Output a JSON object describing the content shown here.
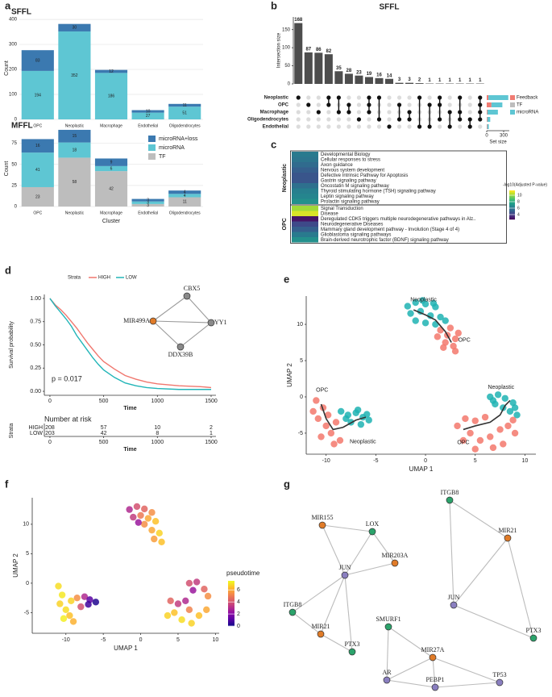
{
  "panel_labels": [
    "a",
    "b",
    "c",
    "d",
    "e",
    "f",
    "g"
  ],
  "chart_data": [
    {
      "type": "bar",
      "stacked": true,
      "title": "SFFL",
      "legend": false,
      "grid": true,
      "categories": [
        "OPC",
        "Neoplastic",
        "Macrophage",
        "Endothelial",
        "Oligodendrocytes"
      ],
      "series": [
        {
          "name": "microRNA",
          "color": "#5ec6d3",
          "values": [
            194,
            352,
            186,
            27,
            51
          ]
        },
        {
          "name": "microRNA+loss",
          "color": "#3b79b0",
          "values": [
            83,
            30,
            12,
            10,
            11
          ]
        }
      ],
      "ylim": [
        0,
        410
      ],
      "yticks": [
        0,
        100,
        200,
        300,
        400
      ],
      "ylabel": "Count"
    },
    {
      "type": "bar",
      "stacked": true,
      "title": "MFFL",
      "legend": "top-right",
      "grid": true,
      "categories": [
        "OPC",
        "Neoplastic",
        "Macrophage",
        "Endothelial",
        "Oligodendrocytes"
      ],
      "series": [
        {
          "name": "TF",
          "color": "#bdbdbd",
          "values": [
            23,
            58,
            42,
            3,
            11
          ]
        },
        {
          "name": "microRNA",
          "color": "#5ec6d3",
          "values": [
            41,
            18,
            6,
            3,
            4
          ]
        },
        {
          "name": "microRNA+loss",
          "color": "#3b79b0",
          "values": [
            16,
            15,
            9,
            3,
            4
          ]
        }
      ],
      "ylim": [
        0,
        90
      ],
      "yticks": [
        0,
        25,
        50,
        75
      ],
      "xlabel": "Cluster",
      "ylabel": "Count"
    },
    {
      "type": "upset",
      "title": "SFFL",
      "color": "#4d4d4d",
      "values": [
        168,
        87,
        86,
        82,
        35,
        28,
        23,
        19,
        16,
        14,
        3,
        3,
        2,
        1,
        1,
        1,
        1,
        1,
        1
      ],
      "sets": [
        "Neoplastic",
        "OPC",
        "Macrophage",
        "Oligodendrocytes",
        "Endothelial"
      ],
      "members": [
        [
          0
        ],
        [
          1
        ],
        [
          2
        ],
        [
          0,
          1
        ],
        [
          0,
          2
        ],
        [
          1,
          2
        ],
        [
          3
        ],
        [
          0,
          1,
          2
        ],
        [
          0,
          3
        ],
        [
          4
        ],
        [
          1,
          3
        ],
        [
          2,
          3
        ],
        [
          0,
          4
        ],
        [
          1,
          4
        ],
        [
          0,
          1,
          3
        ],
        [
          2,
          4
        ],
        [
          0,
          2,
          3
        ],
        [
          3,
          4
        ],
        [
          0,
          1,
          2,
          3
        ]
      ],
      "ylim": [
        0,
        185
      ],
      "yticks": [
        0,
        50,
        100,
        150
      ],
      "ylabel": "Intersection size",
      "set_size": {
        "label": "Set size",
        "xlim": [
          0,
          400
        ],
        "xticks": [
          0,
          300
        ],
        "series": [
          {
            "name": "Feedback",
            "color": "#f07b72",
            "values": [
              30,
              83,
              12,
              11,
              10
            ]
          },
          {
            "name": "TF",
            "color": "#bdbdbd",
            "values": [
              0,
              0,
              0,
              0,
              0
            ]
          },
          {
            "name": "microRNA",
            "color": "#5ec6d3",
            "values": [
              352,
              194,
              186,
              51,
              27
            ]
          }
        ]
      }
    },
    {
      "type": "heatmap",
      "colormap": "viridis",
      "groups": [
        {
          "name": "Neoplastic",
          "rows": [
            "Developmental Biology",
            "Cellular responses to stress",
            "Axon guidance",
            "Nervous system development",
            "Defective Intrinsic Pathway for Apoptosis",
            "Gastrin signaling pathway",
            "Oncostatin M signaling pathway",
            "Thyroid stimulating hormone (TSH) signaling pathway",
            "Leptin signaling pathway",
            "Prolactin signaling pathway"
          ],
          "values": [
            6.2,
            6,
            5.6,
            5.2,
            4.9,
            4.9,
            5.8,
            6.4,
            6.6,
            7
          ]
        },
        {
          "name": "OPC",
          "rows": [
            "Signal Transduction",
            "Disease",
            "Deregulated CDK5 triggers multiple neurodegenerative pathways in Alz..",
            "Neurodegenerative Diseases",
            "Mammary gland development pathway - Involution (Stage 4 of 4)",
            "Glioblastoma signaling pathways",
            "Brain-derived neurotrophic factor (BDNF) signaling pathway"
          ],
          "values": [
            10.2,
            11,
            3,
            4.5,
            5.2,
            6.2,
            7
          ]
        }
      ],
      "colorbar": {
        "label": "-log10(Adjusted P-value)",
        "lim": [
          2.5,
          11.5
        ],
        "ticks": [
          4,
          6,
          8,
          10
        ]
      }
    },
    {
      "type": "line",
      "legend_title": "Strata",
      "legend": "top",
      "series": [
        {
          "name": "HIGH",
          "color": "#f0776e",
          "x": [
            0,
            50,
            100,
            150,
            200,
            250,
            300,
            350,
            400,
            450,
            500,
            600,
            700,
            800,
            900,
            1000,
            1200,
            1400,
            1500
          ],
          "values": [
            1,
            0.93,
            0.88,
            0.82,
            0.75,
            0.68,
            0.6,
            0.52,
            0.45,
            0.38,
            0.32,
            0.24,
            0.17,
            0.13,
            0.1,
            0.08,
            0.06,
            0.05,
            0.04
          ]
        },
        {
          "name": "LOW",
          "color": "#22b5b8",
          "x": [
            0,
            50,
            100,
            150,
            200,
            250,
            300,
            350,
            400,
            450,
            500,
            600,
            700,
            800,
            900,
            1000,
            1200,
            1500
          ],
          "values": [
            1,
            0.92,
            0.85,
            0.78,
            0.7,
            0.6,
            0.52,
            0.44,
            0.36,
            0.29,
            0.23,
            0.15,
            0.09,
            0.06,
            0.04,
            0.03,
            0.02,
            0.02
          ]
        }
      ],
      "xlim": [
        -52,
        1545
      ],
      "xticks": [
        0,
        500,
        1000,
        1500
      ],
      "xlabel": "Time",
      "ylim": [
        -0.043,
        1.043
      ],
      "yticks": [
        {
          "value": 0,
          "label": "0.00"
        },
        0.25,
        {
          "value": 0.5,
          "label": "0.50"
        },
        0.75,
        {
          "value": 1,
          "label": "1.00"
        }
      ],
      "ylabel": "Survival probability",
      "annotation": "p = 0.017",
      "risk_table": {
        "title": "Number at risk",
        "ylabel": "Strata",
        "xlabel": "Time",
        "xticks": [
          0,
          500,
          1000,
          1500
        ],
        "rows": [
          {
            "name": "HIGH",
            "values": [
              208,
              57,
              10,
              2
            ]
          },
          {
            "name": "LOW",
            "values": [
              203,
              42,
              8,
              1
            ]
          }
        ]
      }
    },
    {
      "type": "scatter",
      "xlabel": "UMAP 1",
      "ylabel": "UMAP 2",
      "xlim": [
        -12,
        11.1
      ],
      "xticks": [
        -10,
        -5,
        0,
        5,
        10
      ],
      "ylim": [
        -7.9,
        13.9
      ],
      "yticks": [
        -5,
        0,
        5,
        10
      ],
      "series": [
        {
          "name": "Neoplastic",
          "color": "#1fb3b3",
          "x": [
            -1.8,
            -1,
            0,
            1,
            -1.5,
            -0.5,
            0.5,
            1.5,
            -1,
            0,
            1,
            2,
            -0.3,
            0.8,
            -8.5,
            -7.8,
            -7,
            -6.3,
            -5.7,
            -7.5,
            -6.5,
            -8,
            -6.8,
            -5.9,
            6.5,
            7.3,
            8,
            8.8,
            7,
            7.8,
            8.5,
            9.2,
            6.8,
            9
          ],
          "values": [
            12.5,
            13,
            12.8,
            12.4,
            11.5,
            11.8,
            11.2,
            11,
            10.5,
            10.2,
            10,
            10.5,
            13.3,
            12.9,
            -2,
            -2.5,
            -2.2,
            -2.8,
            -3.2,
            -3.5,
            -3.8,
            -3,
            -1.8,
            -2.4,
            0,
            0.3,
            -0.2,
            -0.8,
            -1,
            -1.5,
            -2,
            -2.5,
            -0.5,
            -1.5
          ]
        },
        {
          "name": "OPC",
          "color": "#f3786c",
          "x": [
            1.5,
            2.2,
            3,
            2,
            2.8,
            3.3,
            1.2,
            2.5,
            3,
            1.8,
            -11,
            -10.3,
            -10.8,
            -10,
            -9.5,
            -10.5,
            -9.2,
            -11.3,
            -9.8,
            -9,
            -8.6,
            3.2,
            4,
            5,
            6,
            4.5,
            5.5,
            6.5,
            7.5,
            8.3,
            9,
            6.8,
            5,
            3.8,
            7.8,
            8.8
          ],
          "values": [
            9.2,
            8.5,
            8,
            7.5,
            7,
            8.8,
            8.3,
            9.5,
            6.3,
            6.8,
            -0.5,
            -1.5,
            -3,
            -4,
            -5,
            -5.5,
            -6.5,
            -2,
            -2.5,
            -3.5,
            -6,
            -4,
            -3,
            -3.3,
            -2.8,
            -5,
            -6,
            -5.5,
            -4.5,
            -4,
            -5,
            -7,
            -7.2,
            -6,
            -6.5,
            -3.2
          ]
        }
      ],
      "trajectory_color": "#333333",
      "trajectories": [
        {
          "x": [
            -1.2,
            0,
            1,
            2,
            2.6
          ],
          "values": [
            12,
            11.3,
            10.6,
            9,
            7.5
          ]
        },
        {
          "x": [
            -10.5,
            -10,
            -9.3,
            -8.3,
            -7,
            -6
          ],
          "values": [
            -1,
            -3,
            -4.5,
            -4.2,
            -3.2,
            -2.8
          ]
        },
        {
          "x": [
            3.8,
            5,
            6.5,
            7.5,
            8,
            8.5
          ],
          "values": [
            -4.5,
            -4,
            -3.5,
            -2.5,
            -1.2,
            -0.5
          ]
        }
      ],
      "annotations": [
        {
          "text": "Neoplastic",
          "x": -0.2,
          "y": 13.4
        },
        {
          "text": "OPC",
          "x": 3.9,
          "y": 7.8
        },
        {
          "text": "OPC",
          "x": -10.4,
          "y": 0.9
        },
        {
          "text": "Neoplastic",
          "x": -6.3,
          "y": -6.2
        },
        {
          "text": "Neoplastic",
          "x": 7.6,
          "y": 1.3
        },
        {
          "text": "OPC",
          "x": 3.8,
          "y": -6.3
        }
      ]
    },
    {
      "type": "scatter",
      "colormap": "plasma",
      "xlabel": "UMAP 1",
      "ylabel": "UMAP 2",
      "xlim": [
        -14.5,
        10.5
      ],
      "xticks": [
        -10,
        -5,
        0,
        5,
        10
      ],
      "ylim": [
        -8.5,
        14.5
      ],
      "yticks": [
        -5,
        0,
        5,
        10
      ],
      "series": [
        {
          "x": [
            -1.5,
            -0.5,
            0.5,
            1.5,
            -1,
            0,
            1,
            2,
            0.5,
            1.5,
            2.5,
            2.8,
            1.8,
            -0.3,
            -11,
            -10.5,
            -10.8,
            -10,
            -9.5,
            -10.3,
            -9,
            -9.3,
            -8.5,
            -7.5,
            -6.8,
            -6,
            -7,
            -8,
            6.5,
            7.5,
            8.5,
            7,
            9,
            4,
            5,
            6,
            4.5,
            5.5,
            6.8,
            7.8,
            8.8,
            3.6,
            6.5
          ],
          "values": [
            12.5,
            13,
            12.6,
            12,
            11.2,
            11.5,
            11,
            10.5,
            10,
            9,
            8.5,
            7,
            7.5,
            10.3,
            -0.5,
            -2,
            -3.5,
            -4.5,
            -5.5,
            -6,
            -6.5,
            -3,
            -2.5,
            -2.3,
            -2.8,
            -3.2,
            -3.6,
            -4,
            0,
            0.2,
            -1,
            -1.2,
            -2.2,
            -3,
            -3.5,
            -3,
            -5,
            -6.2,
            -6.8,
            -5.5,
            -4.5,
            -5.5,
            -4.5
          ],
          "pseudotime": [
            3,
            4,
            4.5,
            5.5,
            3.5,
            5,
            6,
            6.5,
            5.5,
            6,
            6.8,
            6.5,
            5.8,
            2.5,
            7,
            7.2,
            6.8,
            7,
            6.5,
            7.3,
            6.2,
            6.8,
            5.5,
            3,
            1.2,
            0.3,
            0.8,
            4,
            4,
            3.5,
            4.5,
            2.5,
            5.5,
            4.5,
            3.5,
            3,
            6.5,
            7,
            6.8,
            6.5,
            6,
            6.8,
            5.2
          ]
        }
      ],
      "colorbar": {
        "label": "pseudotime",
        "lim": [
          0,
          7.5
        ],
        "ticks": [
          0,
          2,
          4,
          6
        ]
      }
    }
  ],
  "networks": [
    {
      "edge_color": "#9a9a9a",
      "nodes": [
        {
          "label": "MIR499A",
          "color": "#e07b28"
        },
        {
          "label": "CBX5",
          "color": "#8a8a8a"
        },
        {
          "label": "YY1",
          "color": "#8a8a8a"
        },
        {
          "label": "DDX39B",
          "color": "#8a8a8a"
        }
      ],
      "edges": [
        [
          0,
          1
        ],
        [
          0,
          2
        ],
        [
          0,
          3
        ],
        [
          1,
          2
        ],
        [
          2,
          3
        ]
      ]
    },
    {
      "edge_color": "#bcbcbc",
      "nodes": [
        {
          "label": "MIR155",
          "color": "#e07b28"
        },
        {
          "label": "LOX",
          "color": "#2ba36b"
        },
        {
          "label": "MIR203A",
          "color": "#e07b28"
        },
        {
          "label": "JUN",
          "color": "#8a7fc0"
        },
        {
          "label": "ITGB8",
          "color": "#2ba36b"
        },
        {
          "label": "MIR21",
          "color": "#e07b28"
        },
        {
          "label": "PTX3",
          "color": "#2ba36b"
        }
      ],
      "edges": [
        [
          0,
          1
        ],
        [
          0,
          3
        ],
        [
          1,
          3
        ],
        [
          1,
          2
        ],
        [
          2,
          3
        ],
        [
          3,
          4
        ],
        [
          3,
          5
        ],
        [
          3,
          6
        ],
        [
          4,
          5
        ],
        [
          5,
          6
        ]
      ]
    },
    {
      "edge_color": "#bcbcbc",
      "nodes": [
        {
          "label": "ITGB8",
          "color": "#2ba36b"
        },
        {
          "label": "MIR21",
          "color": "#e07b28"
        },
        {
          "label": "JUN",
          "color": "#8a7fc0"
        },
        {
          "label": "PTX3",
          "color": "#2ba36b"
        }
      ],
      "edges": [
        [
          0,
          1
        ],
        [
          0,
          2
        ],
        [
          1,
          2
        ],
        [
          1,
          3
        ],
        [
          2,
          3
        ]
      ]
    },
    {
      "edge_color": "#bcbcbc",
      "nodes": [
        {
          "label": "SMURF1",
          "color": "#2ba36b"
        },
        {
          "label": "MIR27A",
          "color": "#e07b28"
        },
        {
          "label": "AR",
          "color": "#8a7fc0"
        },
        {
          "label": "TP53",
          "color": "#8a7fc0"
        },
        {
          "label": "PEBP1",
          "color": "#8a7fc0"
        }
      ],
      "edges": [
        [
          0,
          1
        ],
        [
          0,
          2
        ],
        [
          2,
          1
        ],
        [
          2,
          4
        ],
        [
          1,
          4
        ],
        [
          1,
          3
        ],
        [
          3,
          4
        ]
      ]
    }
  ]
}
